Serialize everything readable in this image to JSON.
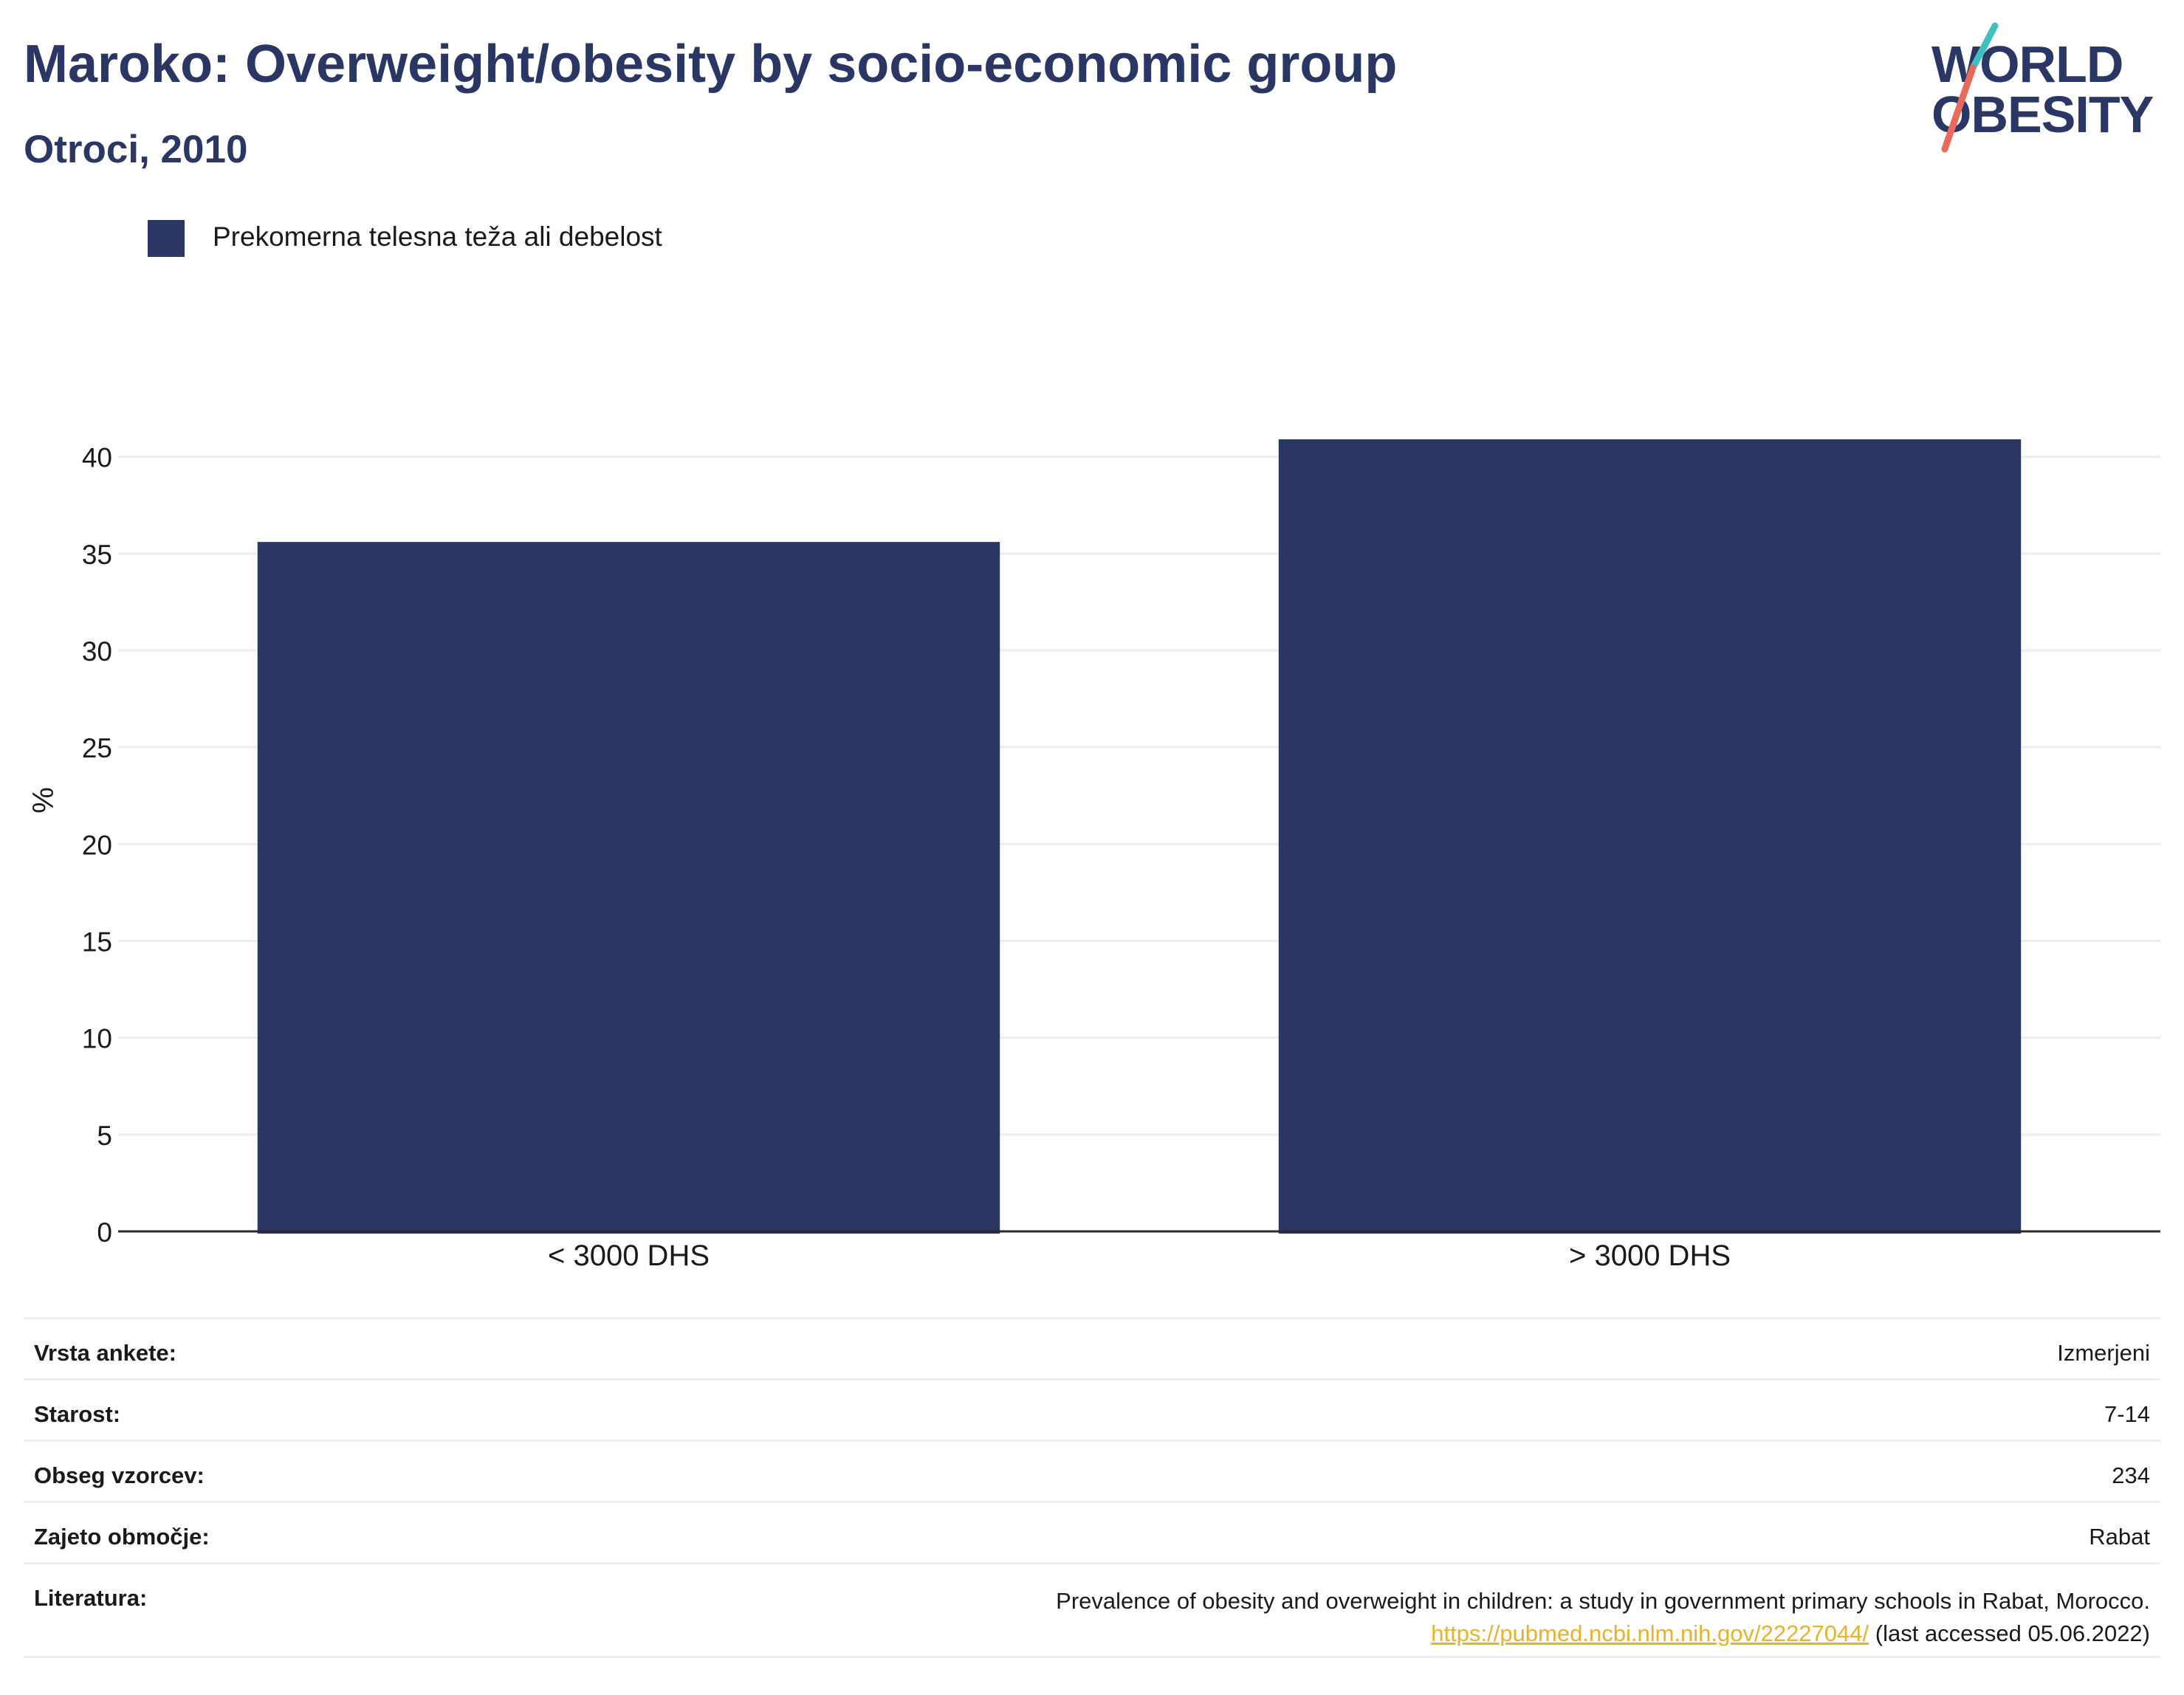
{
  "header": {
    "title": "Maroko: Overweight/obesity by socio-economic group",
    "subtitle": "Otroci, 2010"
  },
  "logo": {
    "line1": "WORLD",
    "line2": "OBESITY",
    "text_color": "#2a3663",
    "slash_colors": [
      "#3fbfbf",
      "#e86a5c"
    ]
  },
  "legend": {
    "items": [
      {
        "label": "Prekomerna telesna teža ali debelost",
        "color": "#2a3663"
      }
    ]
  },
  "chart_data": {
    "type": "bar",
    "categories": [
      "< 3000 DHS",
      "> 3000 DHS"
    ],
    "series": [
      {
        "name": "Prekomerna telesna teža ali debelost",
        "values": [
          35.6,
          40.9
        ],
        "color": "#2a3663"
      }
    ],
    "ylabel": "%",
    "xlabel": "",
    "ylim": [
      0,
      43
    ],
    "yticks": [
      0,
      5,
      10,
      15,
      20,
      25,
      30,
      35,
      40
    ],
    "grid": true,
    "legend_position": "top-left"
  },
  "meta": {
    "rows": [
      {
        "key": "Vrsta ankete:",
        "value": "Izmerjeni"
      },
      {
        "key": "Starost:",
        "value": "7-14"
      },
      {
        "key": "Obseg vzorcev:",
        "value": "234"
      },
      {
        "key": "Zajeto območje:",
        "value": "Rabat"
      }
    ],
    "reference": {
      "key": "Literatura:",
      "text": "Prevalence of obesity and overweight in children: a study in government primary schools in Rabat, Morocco.",
      "link": "https://pubmed.ncbi.nlm.nih.gov/22227044/",
      "tail": "(last accessed 05.06.2022)"
    }
  }
}
